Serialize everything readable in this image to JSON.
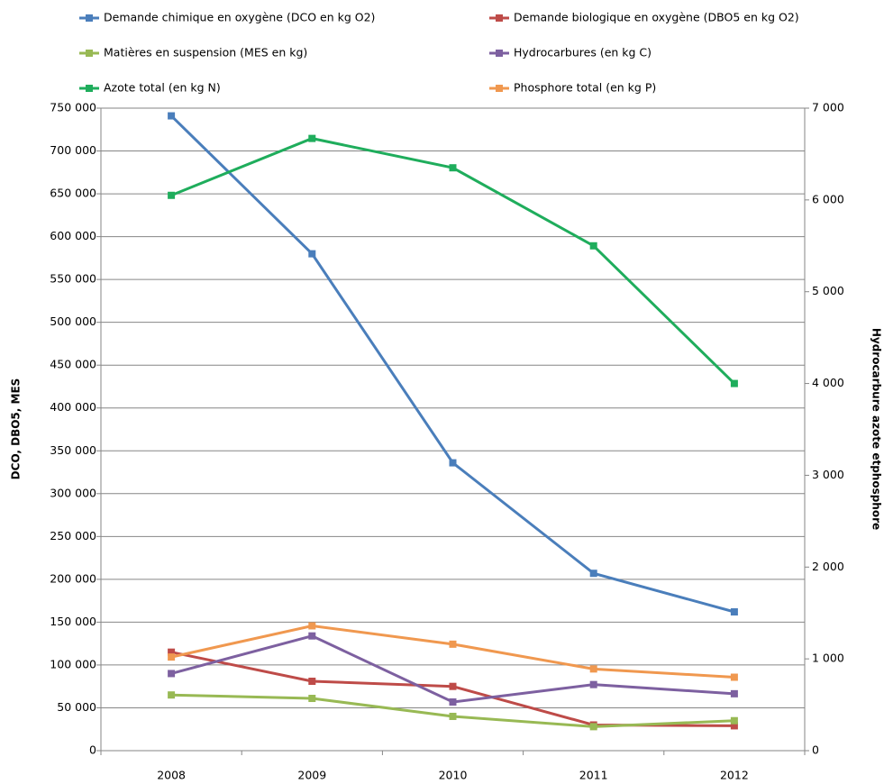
{
  "chart_data": {
    "type": "line",
    "y_label": "DCO, DBO5, MES",
    "y2_label": "Hydrocarbure azote etphosphore",
    "categories": [
      "2008",
      "2009",
      "2010",
      "2011",
      "2012"
    ],
    "series": [
      {
        "name": "Demande chimique en oxygène (DCO en kg O2)",
        "color": "#4a7ebb",
        "values": [
          741000,
          580000,
          336000,
          207000,
          162000
        ]
      },
      {
        "name": "Demande biologique en oxygène (DBO5 en kg O2)",
        "color": "#be4b48",
        "values": [
          115000,
          81000,
          75000,
          30000,
          29000
        ]
      },
      {
        "name": "Matières en suspension (MES en kg)",
        "color": "#98b954",
        "values": [
          65000,
          61000,
          40000,
          28000,
          35000
        ]
      },
      {
        "name": "Hydrocarbures (en kg C)",
        "color": "#7d60a0",
        "axis": "y2",
        "values": [
          840,
          1250,
          530,
          720,
          620
        ]
      },
      {
        "name": "Azote total  (en kg N)",
        "color": "#1fad5c",
        "axis": "y2",
        "values": [
          6050,
          6670,
          6350,
          5500,
          4000
        ]
      },
      {
        "name": "Phosphore total  (en kg P)",
        "color": "#f0984f",
        "axis": "y2",
        "values": [
          1020,
          1360,
          1160,
          890,
          800
        ]
      }
    ],
    "ylim": [
      0,
      750000
    ],
    "yticks": [
      0,
      {
        "value": 50000,
        "label": "50 000"
      },
      {
        "value": 100000,
        "label": "100 000"
      },
      {
        "value": 150000,
        "label": "150 000"
      },
      {
        "value": 200000,
        "label": "200 000"
      },
      {
        "value": 250000,
        "label": "250 000"
      },
      {
        "value": 300000,
        "label": "300 000"
      },
      {
        "value": 350000,
        "label": "350 000"
      },
      {
        "value": 400000,
        "label": "400 000"
      },
      {
        "value": 450000,
        "label": "450 000"
      },
      {
        "value": 500000,
        "label": "500 000"
      },
      {
        "value": 550000,
        "label": "550 000"
      },
      {
        "value": 600000,
        "label": "600 000"
      },
      {
        "value": 650000,
        "label": "650 000"
      },
      {
        "value": 700000,
        "label": "700 000"
      },
      {
        "value": 750000,
        "label": "750 000"
      }
    ],
    "y2lim": [
      0,
      7000
    ],
    "y2ticks": [
      0,
      {
        "value": 1000,
        "label": "1 000"
      },
      {
        "value": 2000,
        "label": "2 000"
      },
      {
        "value": 3000,
        "label": "3 000"
      },
      {
        "value": 4000,
        "label": "4 000"
      },
      {
        "value": 5000,
        "label": "5 000"
      },
      {
        "value": 6000,
        "label": "6 000"
      },
      {
        "value": 7000,
        "label": "7 000"
      }
    ],
    "grid": true,
    "legend": "top"
  }
}
